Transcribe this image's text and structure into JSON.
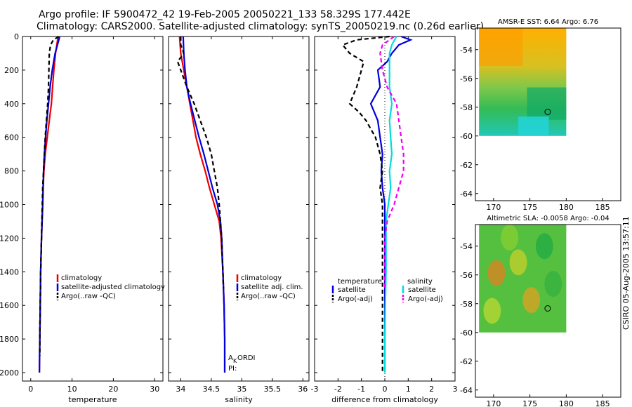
{
  "title": {
    "line1": "Argo profile: IF 5900472_42 19-Feb-2005 20050221_133 58.329S 177.442E",
    "line2": "Climatology: CARS2000. Satellite-adjusted climatology: synTS_20050219.nc (0.26d earlier)"
  },
  "stamp": "CSIRO 05-Aug-2005 13:57:11",
  "colors": {
    "clim": "#ee0000",
    "sat": "#0000dd",
    "argo": "#000000",
    "sal_sat": "#00dddd",
    "sal_argo": "#ee00ee"
  },
  "chart_data": [
    {
      "type": "line",
      "id": "temperature",
      "xlabel": "temperature",
      "xlim": [
        -2,
        32
      ],
      "xticks": [
        0,
        10,
        20,
        30
      ],
      "ylim": [
        0,
        2050
      ],
      "yticks": [
        0,
        200,
        400,
        600,
        800,
        1000,
        1200,
        1400,
        1600,
        1800,
        2000
      ],
      "legend": [
        "climatology",
        "satellite-adjusted climatology",
        "Argo(..raw -QC)"
      ],
      "series": [
        {
          "name": "climatology",
          "style": "clim",
          "depth": [
            0,
            20,
            100,
            200,
            300,
            400,
            500,
            600,
            700,
            800,
            900,
            1000,
            1200,
            1400,
            1600,
            1800,
            2000
          ],
          "values": [
            6.6,
            6.5,
            6.0,
            5.6,
            5.3,
            5.0,
            4.5,
            4.0,
            3.5,
            3.2,
            3.0,
            2.9,
            2.6,
            2.4,
            2.3,
            2.2,
            2.1
          ]
        },
        {
          "name": "satellite-adjusted climatology",
          "style": "sat",
          "depth": [
            0,
            20,
            100,
            200,
            300,
            400,
            500,
            600,
            700,
            800,
            900,
            1000,
            1200,
            1400,
            1600,
            1800,
            2000
          ],
          "values": [
            7.0,
            6.8,
            5.9,
            5.2,
            4.7,
            4.3,
            3.9,
            3.6,
            3.3,
            3.1,
            3.0,
            2.9,
            2.6,
            2.4,
            2.3,
            2.2,
            2.1
          ]
        },
        {
          "name": "Argo(..raw -QC)",
          "style": "argo",
          "depth": [
            0,
            20,
            50,
            100,
            200,
            300,
            400,
            500,
            600,
            700,
            800,
            900,
            1000,
            1100,
            1200,
            1400,
            1600,
            1800,
            1900
          ],
          "values": [
            6.8,
            5.5,
            4.8,
            4.5,
            4.4,
            4.3,
            4.1,
            3.8,
            3.5,
            3.3,
            3.1,
            2.9,
            2.8,
            2.7,
            2.6,
            2.4,
            2.3,
            2.2,
            2.2
          ]
        }
      ]
    },
    {
      "type": "line",
      "id": "salinity",
      "xlabel": "salinity",
      "xlim": [
        33.8,
        36.1
      ],
      "xticks": [
        34,
        34.5,
        35,
        35.5,
        36
      ],
      "ylim": [
        0,
        2050
      ],
      "legend": [
        "climatology",
        "satellite adj. clim.",
        "Argo(..raw -QC)"
      ],
      "annotation": [
        "A",
        "K",
        "ORDI",
        "PI:"
      ],
      "series": [
        {
          "name": "climatology",
          "style": "clim",
          "depth": [
            0,
            100,
            200,
            300,
            400,
            500,
            600,
            700,
            800,
            900,
            1000,
            1100,
            1200,
            1400,
            1600,
            1800,
            2000
          ],
          "values": [
            33.98,
            34.0,
            34.05,
            34.1,
            34.15,
            34.2,
            34.25,
            34.32,
            34.4,
            34.47,
            34.55,
            34.63,
            34.66,
            34.69,
            34.71,
            34.72,
            34.72
          ]
        },
        {
          "name": "satellite adj. clim.",
          "style": "sat",
          "depth": [
            0,
            100,
            200,
            300,
            400,
            500,
            600,
            700,
            800,
            900,
            1000,
            1100,
            1200,
            1400,
            1600,
            1800,
            2000
          ],
          "values": [
            34.04,
            34.05,
            34.07,
            34.1,
            34.16,
            34.23,
            34.3,
            34.38,
            34.45,
            34.52,
            34.6,
            34.65,
            34.67,
            34.69,
            34.71,
            34.72,
            34.72
          ]
        },
        {
          "name": "Argo(..raw -QC)",
          "style": "argo",
          "depth": [
            0,
            50,
            100,
            150,
            200,
            300,
            400,
            500,
            600,
            700,
            800,
            900,
            1000,
            1100,
            1200,
            1300,
            1400,
            1500
          ],
          "values": [
            34.0,
            34.0,
            34.05,
            33.95,
            34.0,
            34.1,
            34.22,
            34.32,
            34.42,
            34.5,
            34.55,
            34.6,
            34.63,
            34.65,
            34.67,
            34.68,
            34.69,
            34.7
          ]
        }
      ]
    },
    {
      "type": "line",
      "id": "difference",
      "xlabel": "difference from climatology",
      "xlim": [
        -3,
        3
      ],
      "xticks": [
        -3,
        -2,
        -1,
        0,
        1,
        2,
        3
      ],
      "ylim": [
        0,
        2050
      ],
      "legend_temperature": {
        "title": "temperature",
        "entries": [
          "satellite",
          "Argo(-adj)"
        ]
      },
      "legend_salinity": {
        "title": "salinity",
        "entries": [
          "satellite",
          "Argo(-adj)"
        ]
      },
      "series": [
        {
          "name": "temperature satellite",
          "style": "sat",
          "depth": [
            0,
            20,
            50,
            100,
            150,
            200,
            300,
            400,
            500,
            600,
            700,
            800,
            900,
            1000,
            1100,
            1200,
            1400,
            1600,
            1800,
            2000
          ],
          "values": [
            0.7,
            1.1,
            0.6,
            0.3,
            0.1,
            -0.3,
            -0.2,
            -0.6,
            -0.3,
            -0.2,
            -0.1,
            -0.15,
            -0.1,
            0.0,
            0.0,
            0.0,
            0.0,
            0.0,
            0.0,
            0.0
          ]
        },
        {
          "name": "temperature Argo(-adj)",
          "style": "argo",
          "depth": [
            0,
            20,
            50,
            100,
            150,
            200,
            300,
            400,
            450,
            500,
            600,
            700,
            800,
            900,
            1000,
            1100,
            1200,
            1400,
            1600,
            1800,
            2000
          ],
          "values": [
            0.2,
            -1.2,
            -1.8,
            -1.5,
            -0.9,
            -1.0,
            -1.2,
            -1.5,
            -1.1,
            -0.8,
            -0.4,
            -0.2,
            -0.1,
            -0.2,
            -0.1,
            -0.1,
            -0.1,
            -0.1,
            -0.1,
            -0.1,
            -0.1
          ]
        },
        {
          "name": "salinity satellite",
          "style": "sal_sat",
          "depth": [
            0,
            50,
            100,
            200,
            300,
            400,
            500,
            600,
            700,
            800,
            900,
            1000,
            1100,
            1200,
            1400,
            1600,
            1800,
            2000
          ],
          "values": [
            0.5,
            0.3,
            0.2,
            0.2,
            0.2,
            0.3,
            0.2,
            0.25,
            0.3,
            0.2,
            0.25,
            0.15,
            0.05,
            0.05,
            0.05,
            0.02,
            0.0,
            0.0
          ]
        },
        {
          "name": "salinity Argo(-adj)",
          "style": "sal_argo",
          "depth": [
            0,
            50,
            100,
            200,
            300,
            400,
            500,
            600,
            700,
            800,
            900,
            1000,
            1100,
            1200,
            1400,
            1500
          ],
          "values": [
            0.4,
            -0.1,
            -0.2,
            -0.1,
            0.1,
            0.5,
            0.6,
            0.7,
            0.8,
            0.8,
            0.6,
            0.4,
            0.1,
            0.0,
            0.0,
            0.0
          ]
        }
      ]
    },
    {
      "type": "heatmap",
      "id": "sst-map",
      "title": "AMSR-E SST: 6.64 Argo: 6.76",
      "xlim": [
        167.5,
        187.5
      ],
      "xticks": [
        170,
        175,
        180,
        185
      ],
      "ylim": [
        -64.5,
        -52.5
      ],
      "yticks": [
        -54,
        -56,
        -58,
        -60,
        -62,
        -64
      ],
      "data_extent": {
        "lon": [
          168,
          180
        ],
        "lat": [
          -60,
          -52.5
        ]
      },
      "marker": {
        "lon": 177.442,
        "lat": -58.329
      }
    },
    {
      "type": "heatmap",
      "id": "sla-map",
      "title": "Altimetric SLA: -0.0058 Argo: -0.04",
      "xlim": [
        167.5,
        187.5
      ],
      "xticks": [
        170,
        175,
        180,
        185
      ],
      "ylim": [
        -64.5,
        -52.5
      ],
      "yticks": [
        -54,
        -56,
        -58,
        -60,
        -62,
        -64
      ],
      "data_extent": {
        "lon": [
          168,
          180
        ],
        "lat": [
          -60,
          -52.5
        ]
      },
      "marker": {
        "lon": 177.442,
        "lat": -58.329
      }
    }
  ]
}
